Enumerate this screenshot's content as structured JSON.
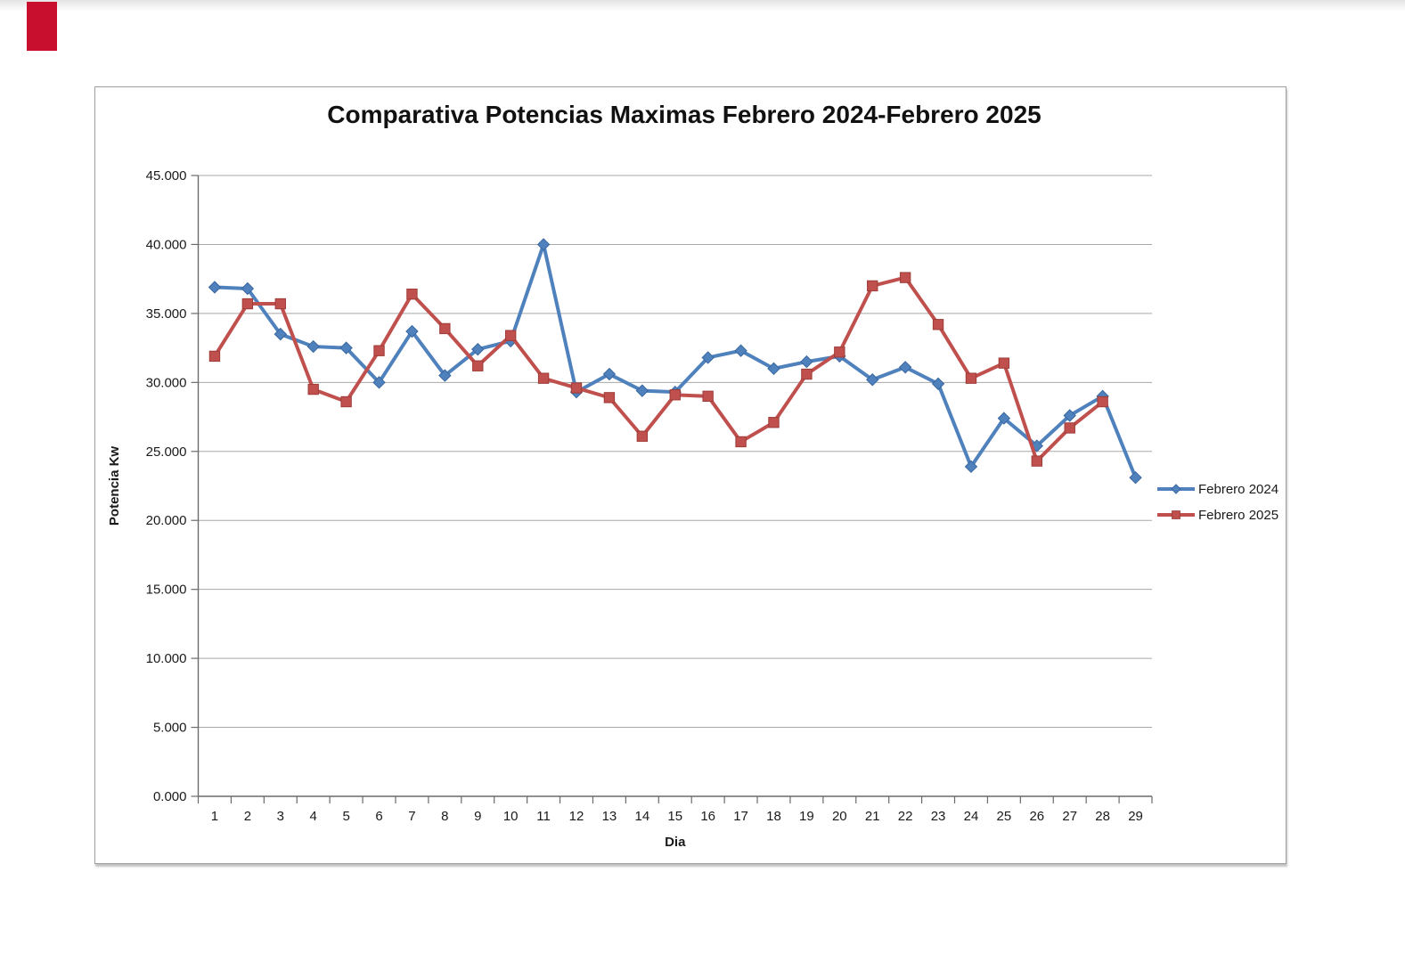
{
  "page": {
    "background": "#ffffff",
    "corner_marker_color": "#c8102e"
  },
  "chart_data": {
    "type": "line",
    "title": "Comparativa Potencias Maximas Febrero 2024-Febrero 2025",
    "xlabel": "Dia",
    "ylabel": "Potencia Kw",
    "x_categories": [
      "1",
      "2",
      "3",
      "4",
      "5",
      "6",
      "7",
      "8",
      "9",
      "10",
      "11",
      "12",
      "13",
      "14",
      "15",
      "16",
      "17",
      "18",
      "19",
      "20",
      "21",
      "22",
      "23",
      "24",
      "25",
      "26",
      "27",
      "28",
      "29"
    ],
    "ylim": [
      0,
      45000
    ],
    "yticks": {
      "values": [
        0,
        5000,
        10000,
        15000,
        20000,
        25000,
        30000,
        35000,
        40000,
        45000
      ],
      "labels": [
        "0.000",
        "5.000",
        "10.000",
        "15.000",
        "20.000",
        "25.000",
        "30.000",
        "35.000",
        "40.000",
        "45.000"
      ]
    },
    "grid": true,
    "legend_position": "right",
    "series": [
      {
        "name": "Febrero 2024",
        "color": "#4F81BD",
        "marker": "diamond",
        "marker_edge": "#3A679F",
        "values": [
          36900,
          36800,
          33500,
          32600,
          32500,
          30000,
          33700,
          30500,
          32400,
          33000,
          40000,
          29300,
          30600,
          29400,
          29300,
          31800,
          32300,
          31000,
          31500,
          31900,
          30200,
          31100,
          29900,
          23900,
          27400,
          25400,
          27600,
          29000,
          23100
        ]
      },
      {
        "name": "Febrero 2025",
        "color": "#C0504D",
        "marker": "square",
        "marker_edge": "#9E3B38",
        "values": [
          31900,
          35700,
          35700,
          29500,
          28600,
          32300,
          36400,
          33900,
          31200,
          33400,
          30300,
          29600,
          28900,
          26100,
          29100,
          29000,
          25700,
          27100,
          30600,
          32200,
          37000,
          37600,
          34200,
          30300,
          31400,
          24300,
          26700,
          28600
        ]
      }
    ]
  }
}
